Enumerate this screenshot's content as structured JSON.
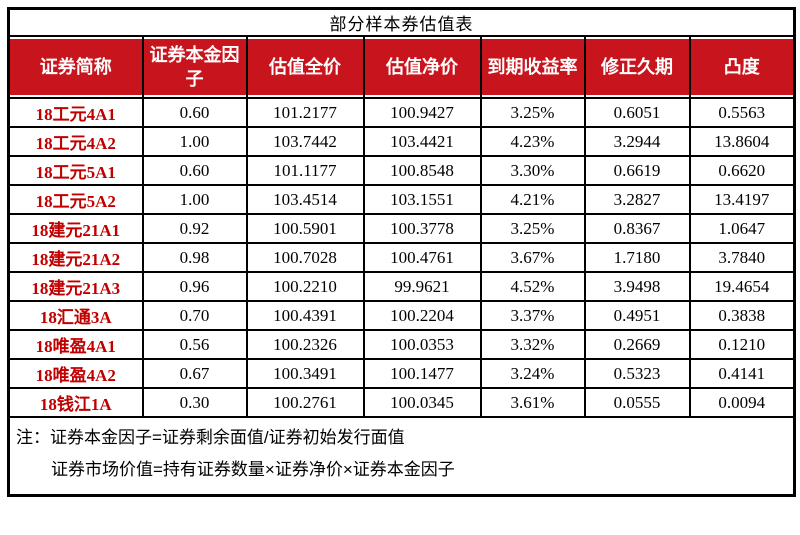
{
  "title": "部分样本券估值表",
  "colors": {
    "header_bg": "#c8141c",
    "label_red": "#c00000",
    "border": "#000000"
  },
  "table": {
    "columns": [
      "证券简称",
      "证券本金因子",
      "估值全价",
      "估值净价",
      "到期收益率",
      "修正久期",
      "凸度"
    ],
    "rows": [
      [
        "18工元4A1",
        "0.60",
        "101.2177",
        "100.9427",
        "3.25%",
        "0.6051",
        "0.5563"
      ],
      [
        "18工元4A2",
        "1.00",
        "103.7442",
        "103.4421",
        "4.23%",
        "3.2944",
        "13.8604"
      ],
      [
        "18工元5A1",
        "0.60",
        "101.1177",
        "100.8548",
        "3.30%",
        "0.6619",
        "0.6620"
      ],
      [
        "18工元5A2",
        "1.00",
        "103.4514",
        "103.1551",
        "4.21%",
        "3.2827",
        "13.4197"
      ],
      [
        "18建元21A1",
        "0.92",
        "100.5901",
        "100.3778",
        "3.25%",
        "0.8367",
        "1.0647"
      ],
      [
        "18建元21A2",
        "0.98",
        "100.7028",
        "100.4761",
        "3.67%",
        "1.7180",
        "3.7840"
      ],
      [
        "18建元21A3",
        "0.96",
        "100.2210",
        "99.9621",
        "4.52%",
        "3.9498",
        "19.4654"
      ],
      [
        "18汇通3A",
        "0.70",
        "100.4391",
        "100.2204",
        "3.37%",
        "0.4951",
        "0.3838"
      ],
      [
        "18唯盈4A1",
        "0.56",
        "100.2326",
        "100.0353",
        "3.32%",
        "0.2669",
        "0.1210"
      ],
      [
        "18唯盈4A2",
        "0.67",
        "100.3491",
        "100.1477",
        "3.24%",
        "0.5323",
        "0.4141"
      ],
      [
        "18钱江1A",
        "0.30",
        "100.2761",
        "100.0345",
        "3.61%",
        "0.0555",
        "0.0094"
      ]
    ]
  },
  "notes": {
    "line1": "注：证券本金因子=证券剩余面值/证券初始发行面值",
    "line2": "证券市场价值=持有证券数量×证券净价×证券本金因子"
  }
}
